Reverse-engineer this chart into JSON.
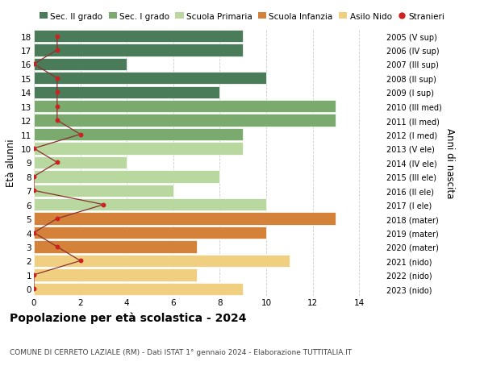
{
  "ages": [
    18,
    17,
    16,
    15,
    14,
    13,
    12,
    11,
    10,
    9,
    8,
    7,
    6,
    5,
    4,
    3,
    2,
    1,
    0
  ],
  "right_labels": [
    "2005 (V sup)",
    "2006 (IV sup)",
    "2007 (III sup)",
    "2008 (II sup)",
    "2009 (I sup)",
    "2010 (III med)",
    "2011 (II med)",
    "2012 (I med)",
    "2013 (V ele)",
    "2014 (IV ele)",
    "2015 (III ele)",
    "2016 (II ele)",
    "2017 (I ele)",
    "2018 (mater)",
    "2019 (mater)",
    "2020 (mater)",
    "2021 (nido)",
    "2022 (nido)",
    "2023 (nido)"
  ],
  "bar_values": [
    9,
    9,
    4,
    10,
    8,
    13,
    13,
    9,
    9,
    4,
    8,
    6,
    10,
    13,
    10,
    7,
    11,
    7,
    9
  ],
  "bar_colors": [
    "#4a7c59",
    "#4a7c59",
    "#4a7c59",
    "#4a7c59",
    "#4a7c59",
    "#7aaa6e",
    "#7aaa6e",
    "#7aaa6e",
    "#b8d8a0",
    "#b8d8a0",
    "#b8d8a0",
    "#b8d8a0",
    "#b8d8a0",
    "#d4823a",
    "#d4823a",
    "#d4823a",
    "#f0d080",
    "#f0d080",
    "#f0d080"
  ],
  "stranieri_values": [
    1,
    1,
    0,
    1,
    1,
    1,
    1,
    2,
    0,
    1,
    0,
    0,
    3,
    1,
    0,
    1,
    2,
    0,
    0
  ],
  "legend_labels": [
    "Sec. II grado",
    "Sec. I grado",
    "Scuola Primaria",
    "Scuola Infanzia",
    "Asilo Nido",
    "Stranieri"
  ],
  "legend_colors": [
    "#4a7c59",
    "#7aaa6e",
    "#b8d8a0",
    "#d4823a",
    "#f0d080",
    "#cc2222"
  ],
  "ylabel_left": "Età alunni",
  "ylabel_right": "Anni di nascita",
  "title": "Popolazione per età scolastica - 2024",
  "subtitle": "COMUNE DI CERRETO LAZIALE (RM) - Dati ISTAT 1° gennaio 2024 - Elaborazione TUTTITALIA.IT",
  "xlim": [
    0,
    15
  ],
  "ylim": [
    -0.5,
    18.5
  ],
  "xticks": [
    0,
    2,
    4,
    6,
    8,
    10,
    12,
    14
  ],
  "background_color": "#ffffff",
  "grid_color": "#cccccc",
  "stranieri_line_color": "#8b3030",
  "stranieri_dot_color": "#cc2222"
}
